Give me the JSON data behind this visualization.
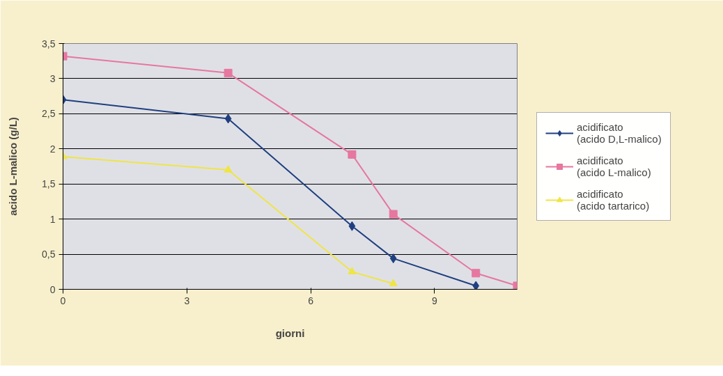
{
  "chart_data": {
    "type": "line",
    "xlabel": "giorni",
    "ylabel": "acido L-malico (g/L)",
    "xlim": [
      0,
      11
    ],
    "xticks": [
      0,
      3,
      6,
      9
    ],
    "ylim": [
      0,
      3.5
    ],
    "yticks": [
      0,
      {
        "value": 0.5,
        "label": "0,5"
      },
      1,
      {
        "value": 1.5,
        "label": "1,5"
      },
      2,
      {
        "value": 2.5,
        "label": "2,5"
      },
      3,
      {
        "value": 3.5,
        "label": "3,5"
      }
    ],
    "grid": "y",
    "legend": "right",
    "line_style": "solid",
    "series": [
      {
        "name": "acidificato (acido D,L-malico)",
        "color": "#1f3f7f",
        "marker": "diamond",
        "x": [
          0,
          4,
          7,
          8,
          10
        ],
        "values": [
          2.7,
          2.43,
          0.9,
          0.44,
          0.05
        ]
      },
      {
        "name": "acidificato (acido L-malico)",
        "color": "#e6779f",
        "marker": "square",
        "x": [
          0,
          4,
          7,
          8,
          10,
          11
        ],
        "values": [
          3.32,
          3.08,
          1.92,
          1.07,
          0.23,
          0.05
        ]
      },
      {
        "name": "acidificato (acido tartarico)",
        "color": "#efe545",
        "marker": "triangle",
        "x": [
          0,
          4,
          7,
          8
        ],
        "values": [
          1.89,
          1.7,
          0.25,
          0.08
        ]
      }
    ]
  }
}
